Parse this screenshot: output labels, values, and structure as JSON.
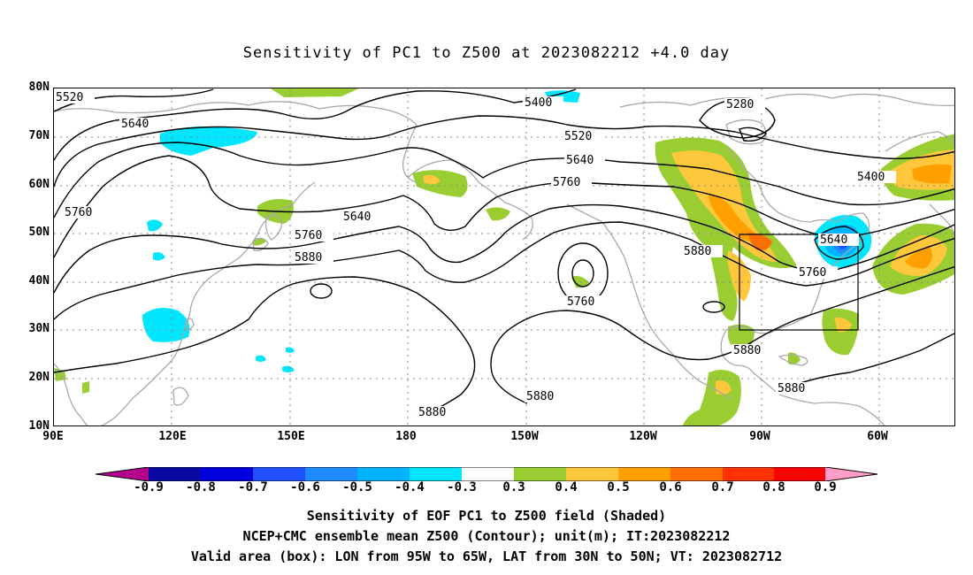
{
  "title": "Sensitivity of PC1 to Z500 at 2023082212 +4.0 day",
  "axes": {
    "lat_labels": [
      "80N",
      "70N",
      "60N",
      "50N",
      "40N",
      "30N",
      "20N",
      "10N"
    ],
    "lon_labels": [
      "90E",
      "120E",
      "150E",
      "180",
      "150W",
      "120W",
      "90W",
      "60W"
    ]
  },
  "contour_labels": [
    "5520",
    "5640",
    "5760",
    "5640",
    "5760",
    "5880",
    "5400",
    "5280",
    "5520",
    "5640",
    "5760",
    "5400",
    "5640",
    "5760",
    "5880",
    "5760",
    "5880",
    "5880",
    "5880",
    "5880"
  ],
  "colorbar": {
    "labels": [
      "-0.9",
      "-0.8",
      "-0.7",
      "-0.6",
      "-0.5",
      "-0.4",
      "-0.3",
      "0.3",
      "0.4",
      "0.5",
      "0.6",
      "0.7",
      "0.8",
      "0.9"
    ],
    "colors": [
      "#b4008c",
      "#0a0aa0",
      "#0000dc",
      "#1e50ff",
      "#1e8cff",
      "#00b4ff",
      "#00e6ff",
      "#ffffff",
      "#9acd32",
      "#ffc83c",
      "#ffa000",
      "#ff6e00",
      "#ff3200",
      "#ff0000",
      "#ff9fc8"
    ]
  },
  "valid_box": {
    "lon_from": "95W",
    "lon_to": "65W",
    "lat_from": "30N",
    "lat_to": "50N"
  },
  "captions": {
    "line1": "Sensitivity of EOF PC1 to Z500 field (Shaded)",
    "line2": "NCEP+CMC ensemble mean Z500 (Contour); unit(m); IT:2023082212",
    "line3": "Valid area (box): LON from 95W to 65W, LAT from 30N to 50N; VT: 2023082712"
  },
  "colors": {
    "coast": "#a9a9a9",
    "contour": "#000000",
    "grid": "#888888",
    "box": "#000000"
  }
}
